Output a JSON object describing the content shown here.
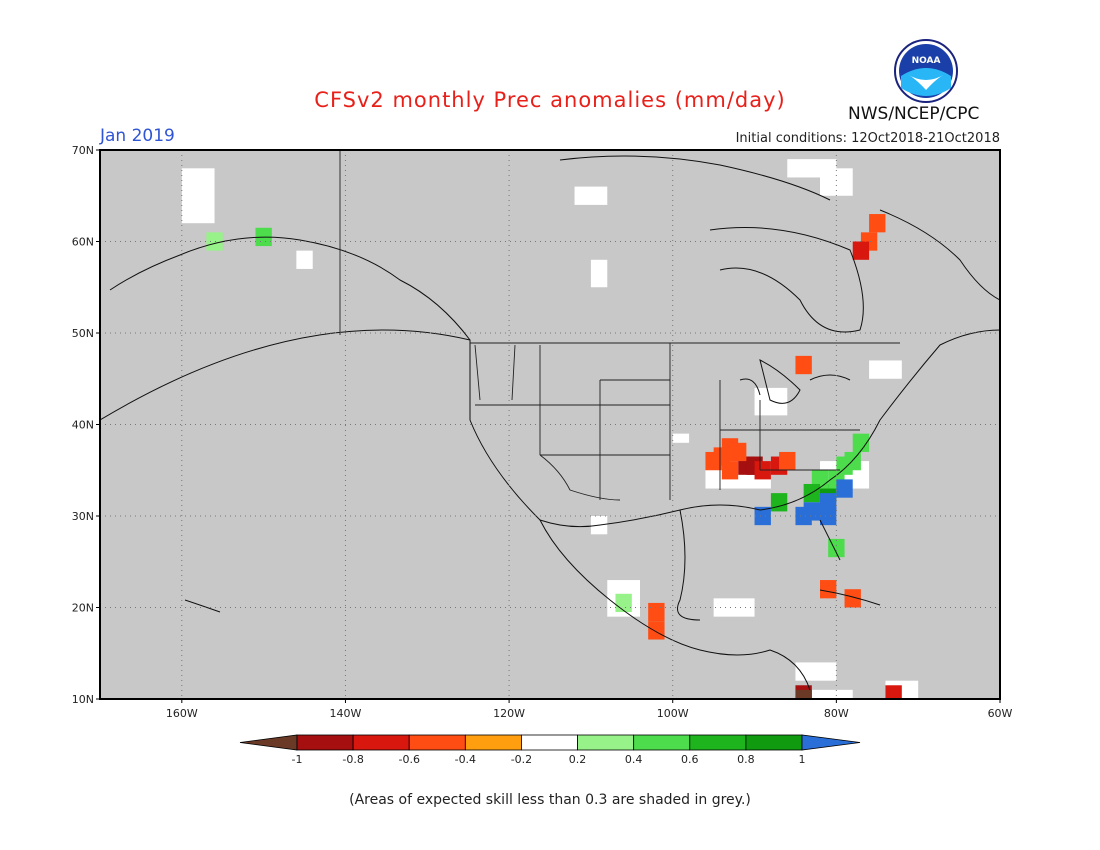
{
  "header": {
    "title": "CFSv2 monthly Prec anomalies (mm/day)",
    "period": "Jan 2019",
    "initial_conditions": "Initial conditions: 12Oct2018-21Oct2018",
    "organization": "NWS/NCEP/CPC",
    "logo_text": "NOAA"
  },
  "map": {
    "lon_range": [
      -170,
      -60
    ],
    "lat_range": [
      10,
      70
    ],
    "background_color": "#c8c8c8",
    "lat_labels": [
      "70N",
      "60N",
      "50N",
      "40N",
      "30N",
      "20N",
      "10N"
    ],
    "lon_labels": [
      "160W",
      "140W",
      "120W",
      "100W",
      "80W",
      "60W"
    ],
    "anomaly_cells": [
      {
        "lon": -91,
        "lat": 35.5,
        "level": "-0.8"
      },
      {
        "lon": -90,
        "lat": 35.5,
        "level": "-0.8"
      },
      {
        "lon": -89,
        "lat": 35,
        "level": "-0.6"
      },
      {
        "lon": -87,
        "lat": 35.5,
        "level": "-0.6"
      },
      {
        "lon": -93,
        "lat": 37.5,
        "level": "-0.4"
      },
      {
        "lon": -94,
        "lat": 36.5,
        "level": "-0.4"
      },
      {
        "lon": -92,
        "lat": 37,
        "level": "-0.4"
      },
      {
        "lon": -95,
        "lat": 36,
        "level": "-0.4"
      },
      {
        "lon": -86,
        "lat": 36,
        "level": "-0.4"
      },
      {
        "lon": -93,
        "lat": 35,
        "level": "-0.4"
      },
      {
        "lon": -75,
        "lat": 62,
        "level": "-0.4"
      },
      {
        "lon": -76,
        "lat": 60,
        "level": "-0.4"
      },
      {
        "lon": -77,
        "lat": 59,
        "level": "-0.6"
      },
      {
        "lon": -84,
        "lat": 46.5,
        "level": "-0.4"
      },
      {
        "lon": -81,
        "lat": 22,
        "level": "-0.4"
      },
      {
        "lon": -78,
        "lat": 21,
        "level": "-0.4"
      },
      {
        "lon": -102,
        "lat": 19.5,
        "level": "-0.4"
      },
      {
        "lon": -102,
        "lat": 17.5,
        "level": "-0.4"
      },
      {
        "lon": -84,
        "lat": 10.5,
        "level": "-0.8"
      },
      {
        "lon": -73,
        "lat": 10.5,
        "level": "-0.6"
      },
      {
        "lon": -84,
        "lat": 10,
        "level": "-1"
      },
      {
        "lon": -81,
        "lat": 32.5,
        "level": "0.8"
      },
      {
        "lon": -80,
        "lat": 34,
        "level": "0.4"
      },
      {
        "lon": -78,
        "lat": 36,
        "level": "0.4"
      },
      {
        "lon": -77,
        "lat": 38,
        "level": "0.4"
      },
      {
        "lon": -79,
        "lat": 35.5,
        "level": "0.4"
      },
      {
        "lon": -82,
        "lat": 34,
        "level": "0.4"
      },
      {
        "lon": -87,
        "lat": 31.5,
        "level": "0.6"
      },
      {
        "lon": -83,
        "lat": 32.5,
        "level": "0.6"
      },
      {
        "lon": -80,
        "lat": 26.5,
        "level": "0.4"
      },
      {
        "lon": -106,
        "lat": 20.5,
        "level": "0.2"
      },
      {
        "lon": -156,
        "lat": 60,
        "level": "0.2"
      },
      {
        "lon": -150,
        "lat": 60.5,
        "level": "0.4"
      },
      {
        "lon": -83,
        "lat": 30.5,
        "level": "1"
      },
      {
        "lon": -84,
        "lat": 30,
        "level": "1"
      },
      {
        "lon": -81,
        "lat": 30,
        "level": "1"
      },
      {
        "lon": -81,
        "lat": 31.5,
        "level": "1"
      },
      {
        "lon": -89,
        "lat": 30,
        "level": "1"
      },
      {
        "lon": -79,
        "lat": 33,
        "level": "1"
      }
    ]
  },
  "legend": {
    "levels": [
      "-1",
      "-0.8",
      "-0.6",
      "-0.4",
      "-0.2",
      "0.2",
      "0.4",
      "0.6",
      "0.8",
      "1"
    ],
    "colors": {
      "below_-1": "#6b3a26",
      "-1_-0.8": "#a50f0f",
      "-0.8_-0.6": "#d8170f",
      "-0.6_-0.4": "#ff4d14",
      "-0.4_-0.2": "#ff9f0f",
      "-0.2_0.2": "#ffffff",
      "0.2_0.4": "#98f28a",
      "0.4_0.6": "#4cdc4c",
      "0.6_0.8": "#1eb41e",
      "0.8_1": "#0f9a0f",
      "above_1": "#2a6fd8"
    }
  },
  "footnote": "(Areas of expected skill less than 0.3 are shaded in grey.)"
}
